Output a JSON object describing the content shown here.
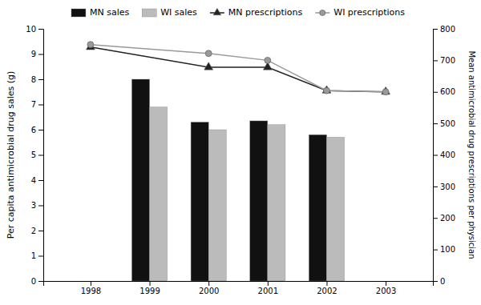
{
  "chart_data": {
    "type": "bar",
    "ylabel": "Per capita antimicrobial drug sales (g)",
    "y2label": "Mean antimicrobial drug prescriptions per physician",
    "xlim": [
      1997.2,
      2003.8
    ],
    "xticks": [
      1998,
      1999,
      2000,
      2001,
      2002,
      2003
    ],
    "ylim": [
      0,
      10
    ],
    "yticks": [
      0,
      1,
      2,
      3,
      4,
      5,
      6,
      7,
      8,
      9,
      10
    ],
    "y2lim": [
      0,
      800
    ],
    "y2ticks": [
      0,
      100,
      200,
      300,
      400,
      500,
      600,
      700,
      800
    ],
    "legend": "top",
    "series": [
      {
        "name": "MN sales",
        "type": "bar",
        "color": "#111111",
        "x": [
          1999,
          2000,
          2001,
          2002
        ],
        "values": [
          8.0,
          6.3,
          6.35,
          5.8
        ]
      },
      {
        "name": "WI sales",
        "type": "bar",
        "color": "#bbbbbb",
        "x": [
          1999,
          2000,
          2001,
          2002
        ],
        "values": [
          6.9,
          6.0,
          6.2,
          5.7
        ]
      },
      {
        "name": "MN prescriptions",
        "type": "line",
        "axis": "y2",
        "color": "#222222",
        "marker": "triangle",
        "x": [
          1998,
          2000,
          2001,
          2002,
          2003
        ],
        "values": [
          742,
          678,
          678,
          604,
          600
        ]
      },
      {
        "name": "WI prescriptions",
        "type": "line",
        "axis": "y2",
        "color": "#999999",
        "marker": "circle",
        "x": [
          1998,
          2000,
          2001,
          2002,
          2003
        ],
        "values": [
          750,
          722,
          700,
          604,
          600
        ]
      }
    ]
  }
}
